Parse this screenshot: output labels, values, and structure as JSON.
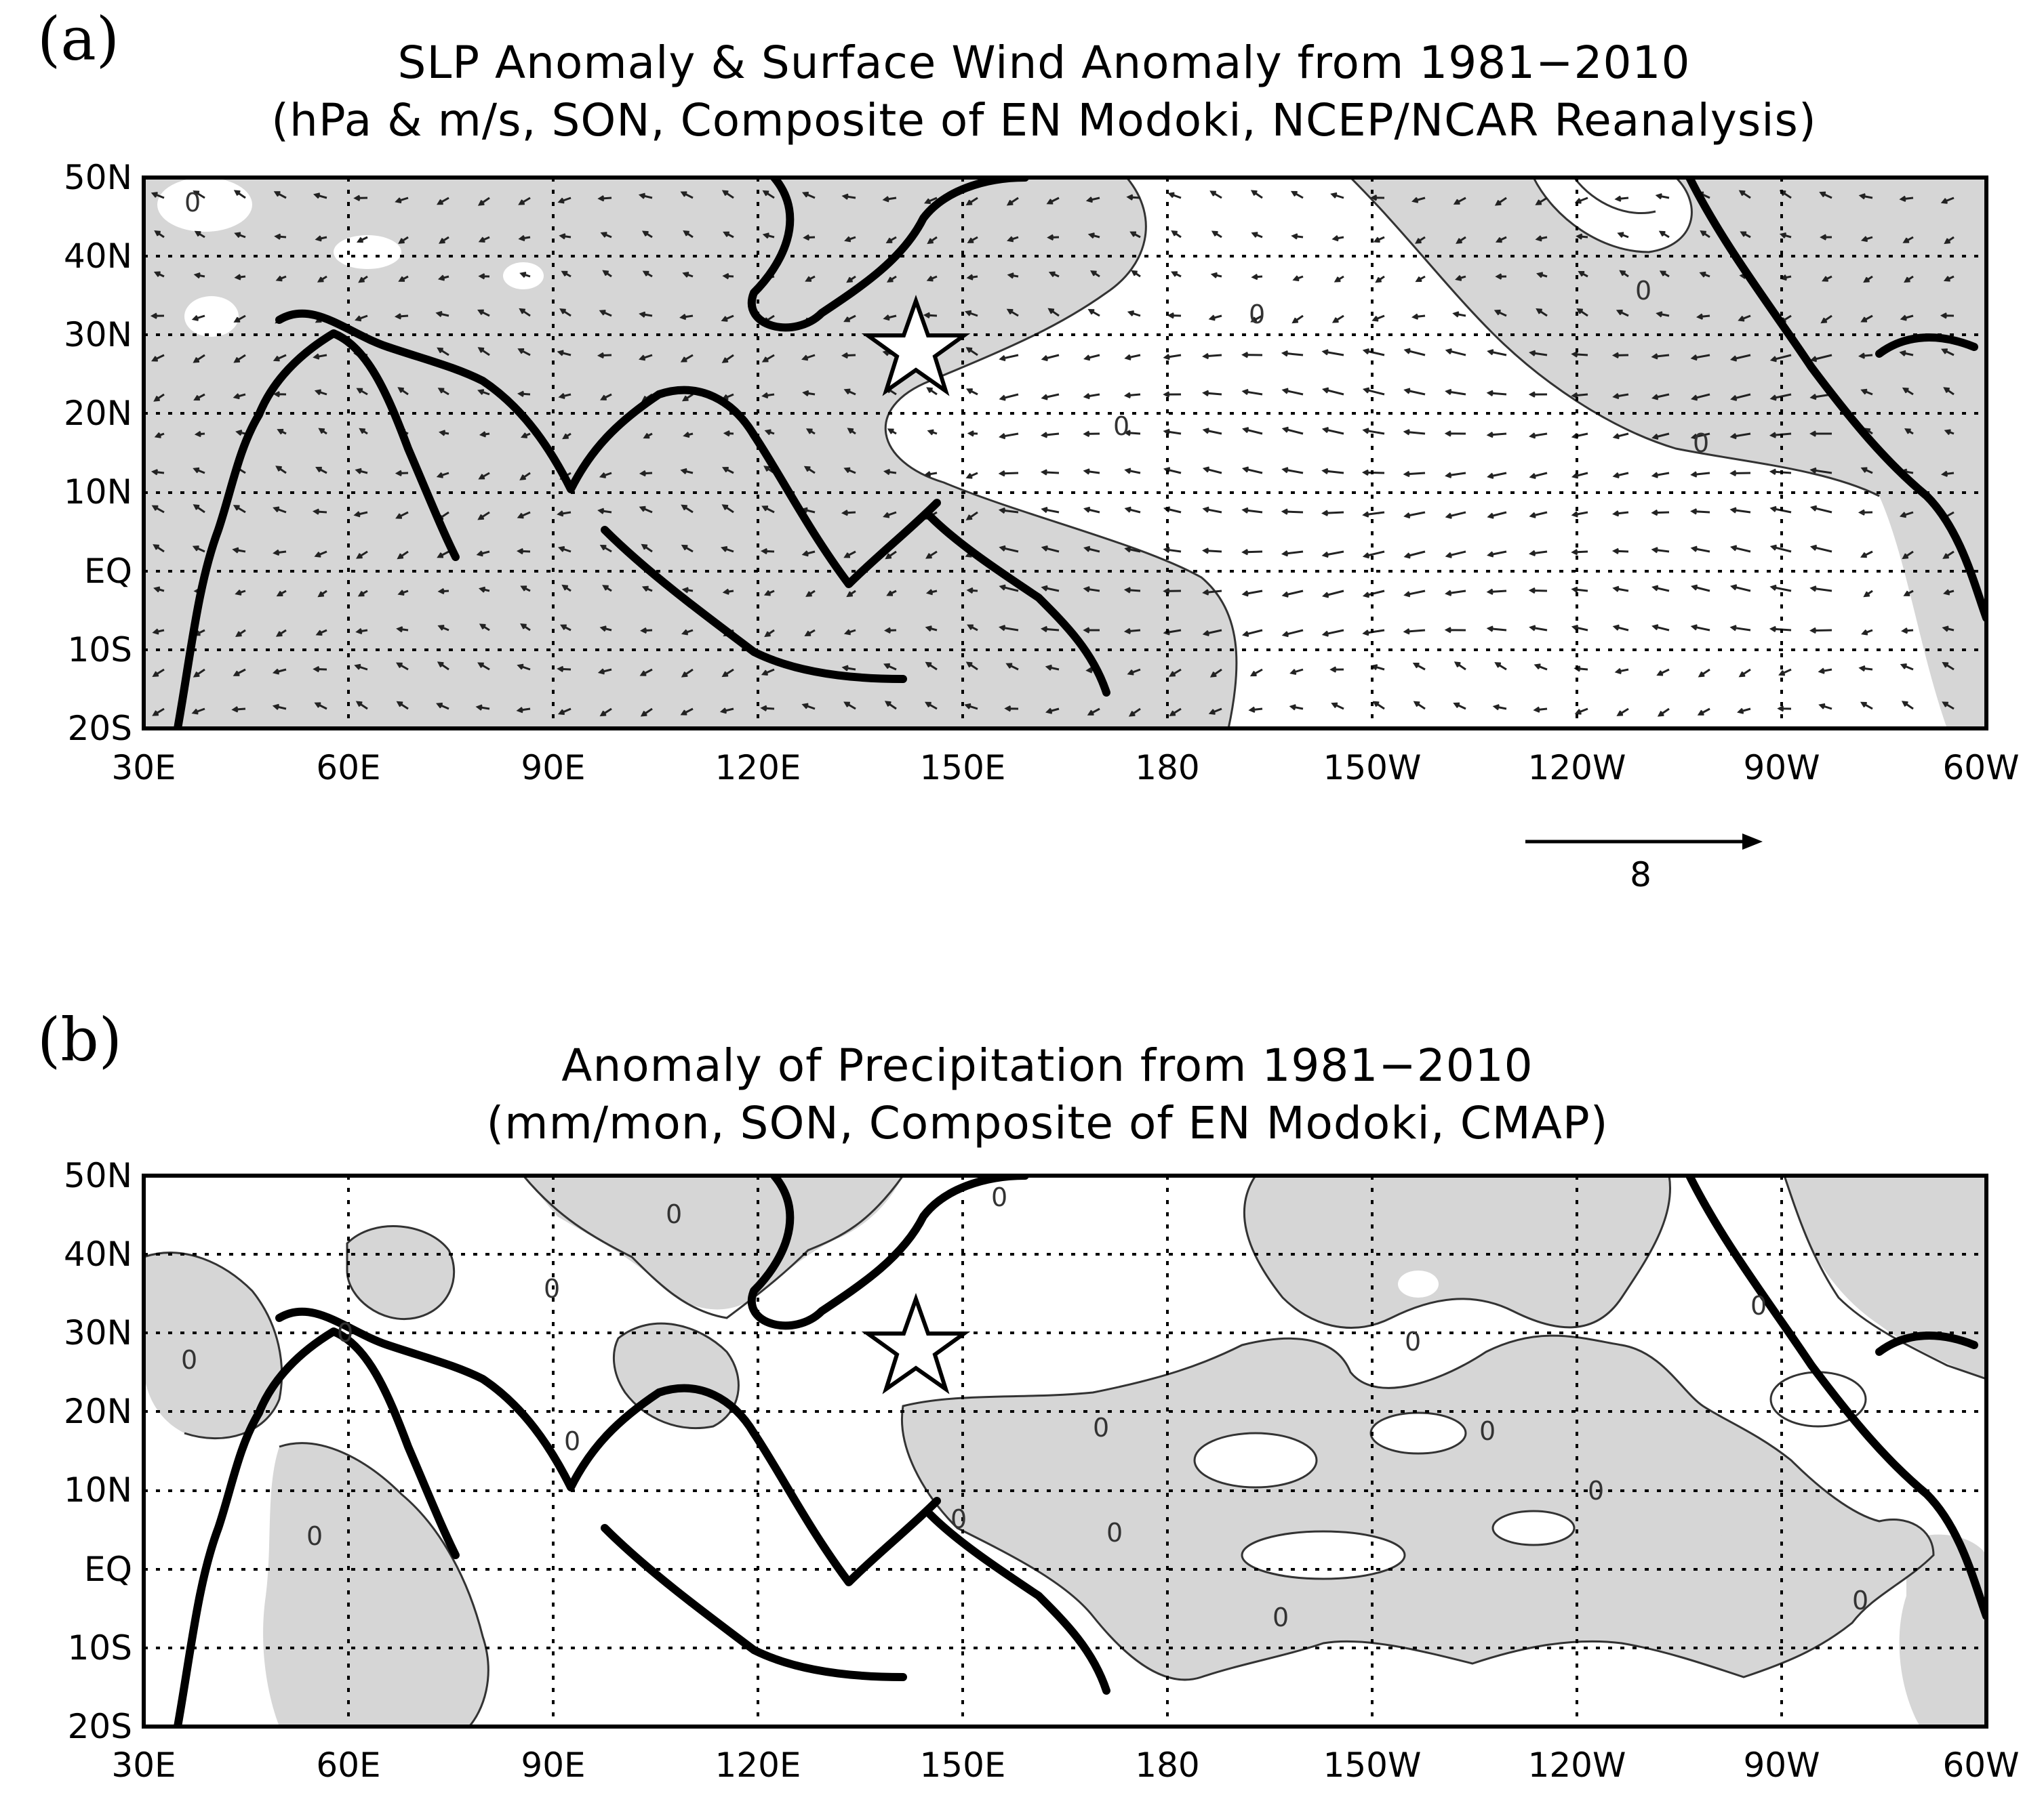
{
  "panels": [
    {
      "letter": "(a)",
      "title_line1": "SLP Anomaly & Surface Wind Anomaly from 1981−2010",
      "title_line2": "(hPa & m/s, SON, Composite of EN Modoki, NCEP/NCAR Reanalysis)",
      "contour_labels": [
        "0",
        "0",
        "0",
        "0",
        "0"
      ],
      "reference_vector": {
        "magnitude": 8,
        "label": "8"
      }
    },
    {
      "letter": "(b)",
      "title_line1": "Anomaly of Precipitation from 1981−2010",
      "title_line2": "(mm/mon, SON, Composite of EN Modoki, CMAP)",
      "contour_labels": [
        "0",
        "0",
        "0",
        "0",
        "0",
        "0",
        "0",
        "0",
        "0",
        "0",
        "0",
        "0",
        "0",
        "0",
        "0",
        "0"
      ]
    }
  ],
  "axes": {
    "lon_ticks": [
      "30E",
      "60E",
      "90E",
      "120E",
      "150E",
      "180",
      "150W",
      "120W",
      "90W",
      "60W"
    ],
    "lat_ticks": [
      "50N",
      "40N",
      "30N",
      "20N",
      "10N",
      "EQ",
      "10S",
      "20S"
    ],
    "lon_range_deg_east": [
      30,
      300
    ],
    "lat_range_deg": [
      -20,
      50
    ]
  },
  "marker": {
    "symbol": "star",
    "lon_deg_east": 143,
    "lat_deg": 28
  },
  "colors": {
    "shading": "#d6d6d6",
    "coastline": "#000000",
    "contour": "#333333",
    "background": "#ffffff"
  }
}
